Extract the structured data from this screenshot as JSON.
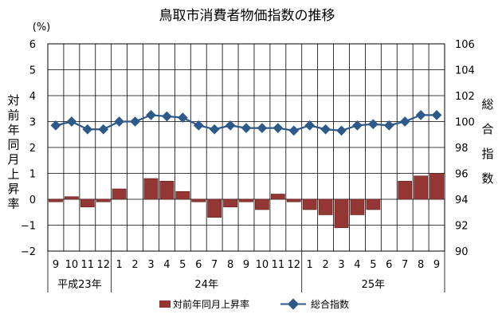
{
  "chart_data": {
    "type": "bar+line",
    "title": "鳥取市消費者物価指数の推移",
    "left_unit": "(%)",
    "left_axis_title": "対前年同月上昇率",
    "right_axis_title": "総合指数",
    "left_ylim": [
      -2,
      6
    ],
    "left_ticks": [
      "−2",
      "−1",
      "0",
      "1",
      "2",
      "3",
      "4",
      "5",
      "6"
    ],
    "right_ylim": [
      90,
      106
    ],
    "right_ticks": [
      "90",
      "92",
      "94",
      "96",
      "98",
      "100",
      "102",
      "104",
      "106"
    ],
    "grid": true,
    "legend_position": "bottom",
    "categories": [
      "9",
      "10",
      "11",
      "12",
      "1",
      "2",
      "3",
      "4",
      "5",
      "6",
      "7",
      "8",
      "9",
      "10",
      "11",
      "12",
      "1",
      "2",
      "3",
      "4",
      "5",
      "6",
      "7",
      "8",
      "9"
    ],
    "groups": [
      {
        "label": "平成23年",
        "start": 0,
        "count": 4
      },
      {
        "label": "24年",
        "start": 4,
        "count": 12
      },
      {
        "label": "25年",
        "start": 16,
        "count": 9
      }
    ],
    "series": [
      {
        "name": "対前年同月上昇率",
        "type": "bar",
        "axis": "left",
        "color": "#943634",
        "values": [
          -0.1,
          0.1,
          -0.3,
          -0.1,
          0.4,
          0.0,
          0.8,
          0.7,
          0.3,
          -0.1,
          -0.7,
          -0.3,
          -0.1,
          -0.4,
          0.2,
          -0.1,
          -0.4,
          -0.6,
          -1.1,
          -0.6,
          -0.4,
          0.0,
          0.7,
          0.9,
          1.0
        ]
      },
      {
        "name": "総合指数",
        "type": "line",
        "axis": "right",
        "color": "#2e5a8a",
        "values": [
          99.7,
          100.0,
          99.4,
          99.4,
          100.0,
          100.0,
          100.5,
          100.4,
          100.3,
          99.7,
          99.4,
          99.7,
          99.5,
          99.5,
          99.5,
          99.3,
          99.7,
          99.4,
          99.3,
          99.7,
          99.8,
          99.7,
          100.0,
          100.5,
          100.5
        ]
      }
    ]
  }
}
